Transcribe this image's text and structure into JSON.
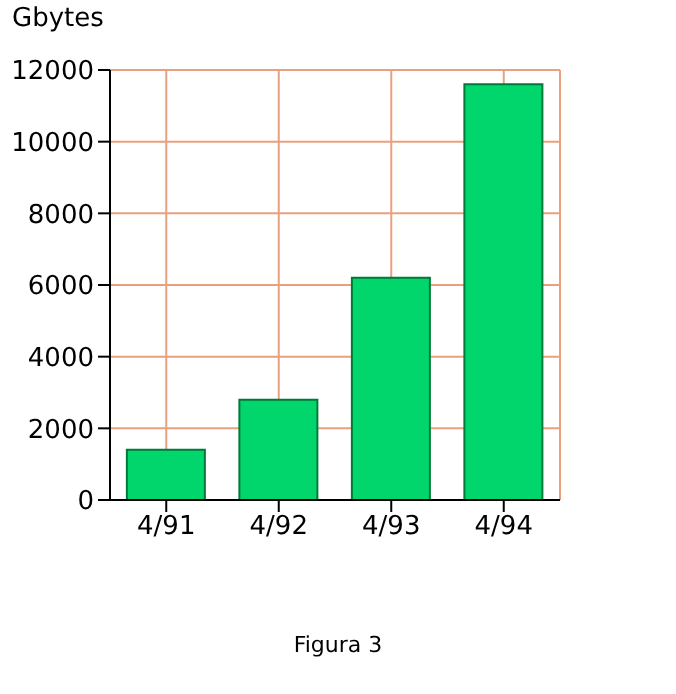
{
  "chart_data": {
    "type": "bar",
    "ylabel": "Gbytes",
    "categories": [
      "4/91",
      "4/92",
      "4/93",
      "4/94"
    ],
    "values": [
      1400,
      2800,
      6200,
      11600
    ],
    "color": "#00d66b",
    "ylim": [
      0,
      12000
    ],
    "yticks": [
      0,
      2000,
      4000,
      6000,
      8000,
      10000,
      12000
    ],
    "grid": true,
    "annotations": [
      "Figura 3"
    ]
  }
}
